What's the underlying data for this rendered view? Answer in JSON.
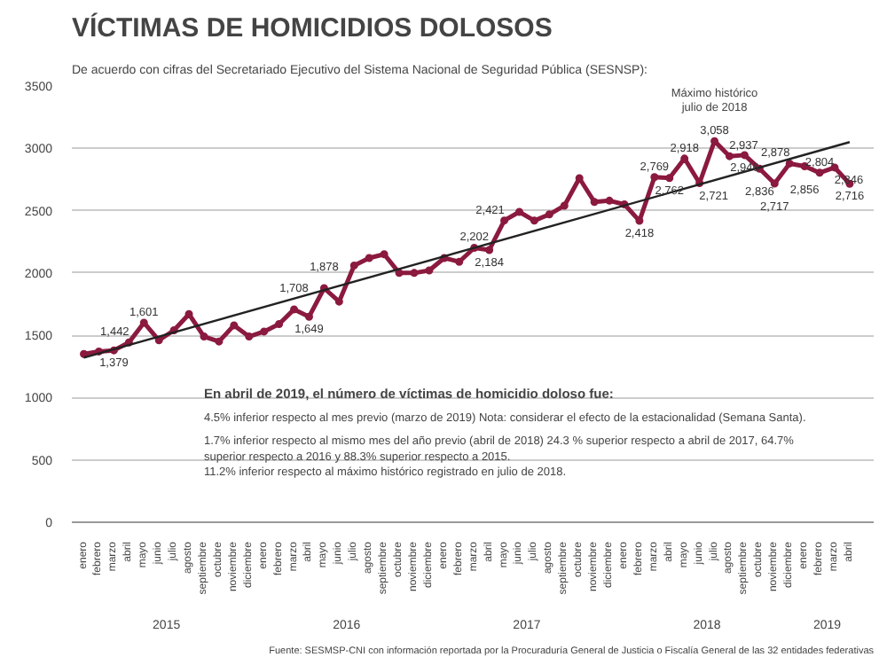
{
  "chart_data": {
    "type": "line",
    "title": "VÍCTIMAS DE HOMICIDIOS DOLOSOS",
    "subtitle": "De acuerdo con cifras del Secretariado Ejecutivo del Sistema Nacional de Seguridad Pública (SESNSP):",
    "categories": [
      "enero",
      "febrero",
      "marzo",
      "abril",
      "mayo",
      "junio",
      "julio",
      "agosto",
      "septiembre",
      "octubre",
      "noviembre",
      "diciembre",
      "enero",
      "febrero",
      "marzo",
      "abril",
      "mayo",
      "junio",
      "julio",
      "agosto",
      "septiembre",
      "octubre",
      "noviembre",
      "diciembre",
      "enero",
      "febrero",
      "marzo",
      "abril",
      "mayo",
      "junio",
      "julio",
      "agosto",
      "septiembre",
      "octubre",
      "noviembre",
      "diciembre",
      "enero",
      "febrero",
      "marzo",
      "abril",
      "mayo",
      "junio",
      "julio",
      "agosto",
      "septiembre",
      "octubre",
      "noviembre",
      "diciembre",
      "enero",
      "febrero",
      "marzo",
      "abril"
    ],
    "series": [
      {
        "color": "#8b1a3e",
        "marker": "circle",
        "values": [
          1350,
          1370,
          1379,
          1442,
          1601,
          1460,
          1540,
          1670,
          1490,
          1450,
          1580,
          1490,
          1530,
          1590,
          1708,
          1649,
          1878,
          1770,
          2060,
          2120,
          2150,
          2000,
          2000,
          2020,
          2120,
          2090,
          2202,
          2184,
          2421,
          2490,
          2420,
          2470,
          2540,
          2760,
          2570,
          2580,
          2550,
          2418,
          2769,
          2762,
          2918,
          2721,
          3058,
          2937,
          2946,
          2836,
          2717,
          2878,
          2856,
          2804,
          2846,
          2716
        ],
        "value_labels": [
          null,
          null,
          "1,379",
          "1,442",
          "1,601",
          null,
          null,
          null,
          null,
          null,
          null,
          null,
          null,
          null,
          "1,708",
          "1,649",
          "1,878",
          null,
          null,
          null,
          null,
          null,
          null,
          null,
          null,
          null,
          "2,202",
          "2,184",
          "2,421",
          null,
          null,
          null,
          null,
          null,
          null,
          null,
          null,
          "2,418",
          "2,769",
          "2,762",
          "2,918",
          "2,721",
          "3,058",
          "2,937",
          "2,946",
          "2,836",
          "2,717",
          "2,878",
          "2,856",
          "2,804",
          "2,846",
          "2,716"
        ]
      },
      {
        "type": "line",
        "color": "#222222",
        "marker": "none",
        "values": [
          1320,
          null,
          null,
          null,
          null,
          null,
          null,
          null,
          null,
          null,
          null,
          null,
          null,
          null,
          null,
          null,
          null,
          null,
          null,
          null,
          null,
          null,
          null,
          null,
          null,
          null,
          null,
          null,
          null,
          null,
          null,
          null,
          null,
          null,
          null,
          null,
          null,
          null,
          null,
          null,
          null,
          null,
          null,
          null,
          null,
          null,
          null,
          null,
          null,
          null,
          null,
          3050
        ]
      }
    ],
    "ylim": [
      0,
      3500
    ],
    "yticks": [
      0,
      500,
      1000,
      1500,
      2000,
      2500,
      3000,
      3500
    ],
    "grid": "y",
    "line_style": "solid",
    "annotations": [
      "2015",
      "2016",
      "2017",
      "2018",
      "2019",
      "Máximo histórico julio de 2018",
      "En abril de 2019, el número de víctimas de homicidio doloso fue:",
      "4.5% inferior respecto al mes previo (marzo de 2019) Nota: considerar el efecto de la estacionalidad (Semana Santa).",
      "1.7% inferior respecto al mismo mes del año previo (abril de 2018)  24.3 % superior respecto a abril de 2017, 64.7% superior respecto a 2016 y 88.3% superior respecto a 2015.",
      "11.2% inferior respecto al máximo histórico registrado en julio de 2018.",
      "Fuente: SESMSP-CNI con información reportada por la Procuraduría General de Justicia o Fiscalía General de las 32 entidades federativas"
    ]
  }
}
